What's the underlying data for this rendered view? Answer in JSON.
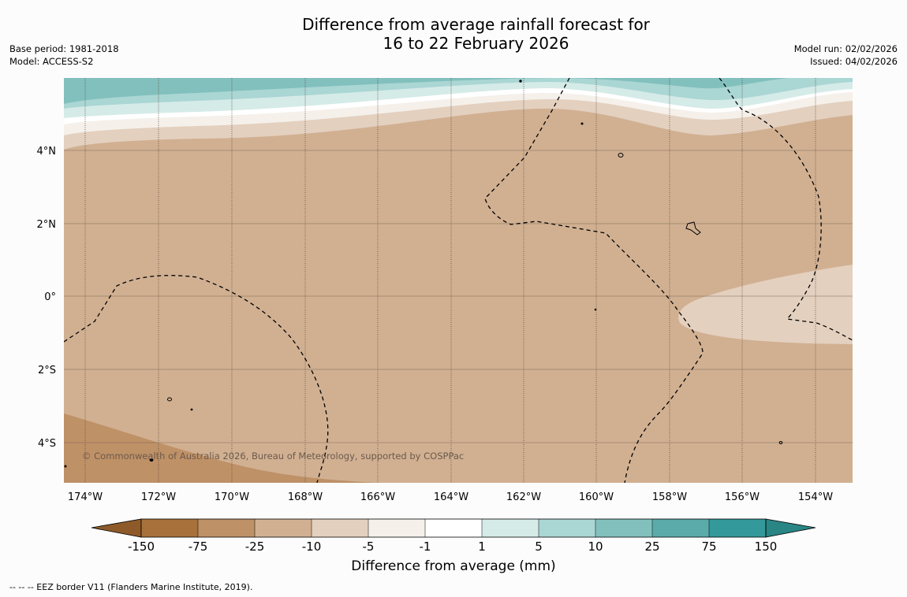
{
  "header": {
    "title_line1": "Difference from average rainfall forecast for",
    "title_line2": "16 to 22 February 2026",
    "base_period": "Base period: 1981-2018",
    "model": "Model: ACCESS-S2",
    "model_run": "Model run: 02/02/2026",
    "issued": "Issued: 04/02/2026"
  },
  "map": {
    "lon_labels": [
      "174°W",
      "172°W",
      "170°W",
      "168°W",
      "166°W",
      "164°W",
      "162°W",
      "160°W",
      "158°W",
      "156°W",
      "154°W"
    ],
    "lat_labels": [
      "4°N",
      "2°N",
      "0°",
      "2°S",
      "4°S"
    ],
    "copyright": "© Commonwealth of Australia 2026, Bureau of Meteorology, supported by COSPPac",
    "colors": {
      "neg150": "#a8703a",
      "neg75": "#bf9167",
      "neg25": "#d1b092",
      "neg10": "#e4d0bf",
      "neg5": "#f5f0ea",
      "zero": "#ffffff",
      "pos1": "#d5ebe8",
      "pos5": "#aad6d4",
      "pos10": "#82c0bd",
      "pos25": "#5aabaa",
      "pos75": "#33999a"
    }
  },
  "colorbar": {
    "ticks": [
      "-150",
      "-75",
      "-25",
      "-10",
      "-5",
      "-1",
      "1",
      "5",
      "10",
      "25",
      "75",
      "150"
    ],
    "label": "Difference from average (mm)"
  },
  "footer": {
    "eez_note": "--  --  -- EEZ border V11 (Flanders Marine Institute, 2019)."
  }
}
